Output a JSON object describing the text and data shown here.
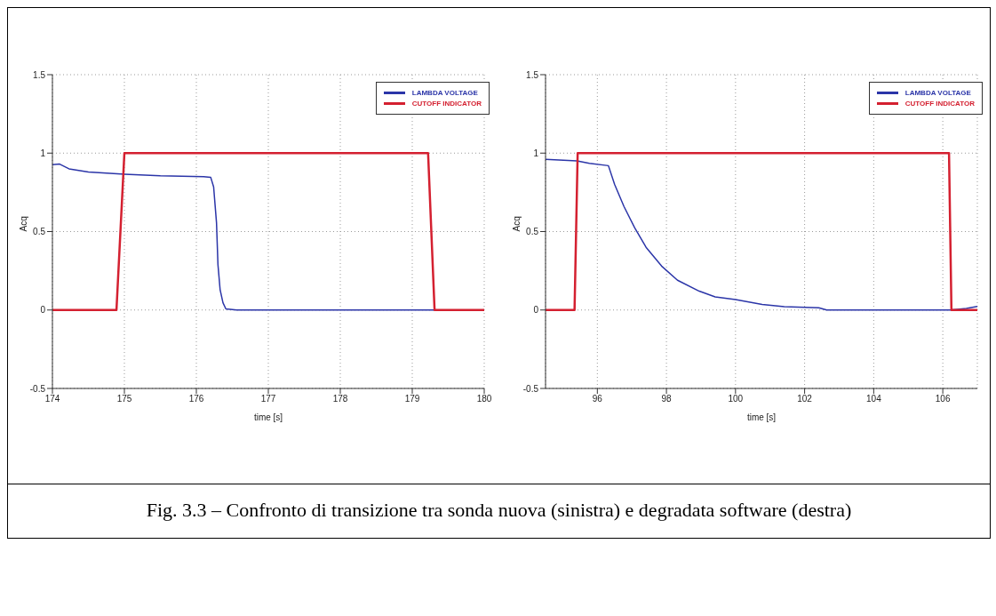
{
  "chart_data": [
    {
      "type": "line",
      "xlabel": "time [s]",
      "ylabel": "Acq",
      "xlim": [
        174,
        180
      ],
      "xticks": [
        174,
        175,
        176,
        177,
        178,
        179,
        180
      ],
      "ylim": [
        -0.5,
        1.5
      ],
      "yticks": [
        -0.5,
        0,
        0.5,
        1,
        1.5
      ],
      "grid": true,
      "legend": "top right",
      "series": [
        {
          "name": "LAMBDA VOLTAGE",
          "color": "#2b35a8",
          "x": [
            174,
            174.1,
            174.23,
            174.5,
            175,
            175.5,
            176.1,
            176.2,
            176.24,
            176.28,
            176.3,
            176.33,
            176.37,
            176.41,
            176.56,
            180
          ],
          "values": [
            0.926,
            0.93,
            0.9,
            0.88,
            0.865,
            0.855,
            0.85,
            0.845,
            0.785,
            0.556,
            0.29,
            0.13,
            0.046,
            0.007,
            0,
            0
          ]
        },
        {
          "name": "CUTOFF INDICATOR",
          "color": "#d42030",
          "x": [
            174,
            174.89,
            175,
            179.22,
            179.31,
            180
          ],
          "values": [
            0,
            0,
            1,
            1,
            0,
            0
          ]
        }
      ]
    },
    {
      "type": "line",
      "xlabel": "time [s]",
      "ylabel": "Acq",
      "xlim": [
        94.5,
        107
      ],
      "xticks": [
        96,
        98,
        100,
        102,
        104,
        106
      ],
      "ylim": [
        -0.5,
        1.5
      ],
      "yticks": [
        -0.5,
        0,
        0.5,
        1,
        1.5
      ],
      "grid": true,
      "legend": "top right",
      "series": [
        {
          "name": "LAMBDA VOLTAGE",
          "color": "#2b35a8",
          "x": [
            94.5,
            95.41,
            95.77,
            96.32,
            96.5,
            96.77,
            97.09,
            97.41,
            97.86,
            98.32,
            98.95,
            99.41,
            100,
            100.77,
            101.41,
            102.41,
            102.64,
            106.23,
            106.68,
            107
          ],
          "values": [
            0.96,
            0.95,
            0.935,
            0.92,
            0.8,
            0.66,
            0.52,
            0.4,
            0.28,
            0.19,
            0.12,
            0.084,
            0.067,
            0.035,
            0.021,
            0.014,
            0,
            0,
            0.01,
            0.023
          ]
        },
        {
          "name": "CUTOFF INDICATOR",
          "color": "#d42030",
          "x": [
            94.5,
            95.34,
            95.43,
            106.18,
            106.25,
            107
          ],
          "values": [
            0,
            0,
            1,
            1,
            0,
            0
          ]
        }
      ],
      "annotations": [
        "Fig. 3.3 – Confronto di transizione tra sonda nuova (sinistra) e degradata software (destra)"
      ]
    }
  ]
}
